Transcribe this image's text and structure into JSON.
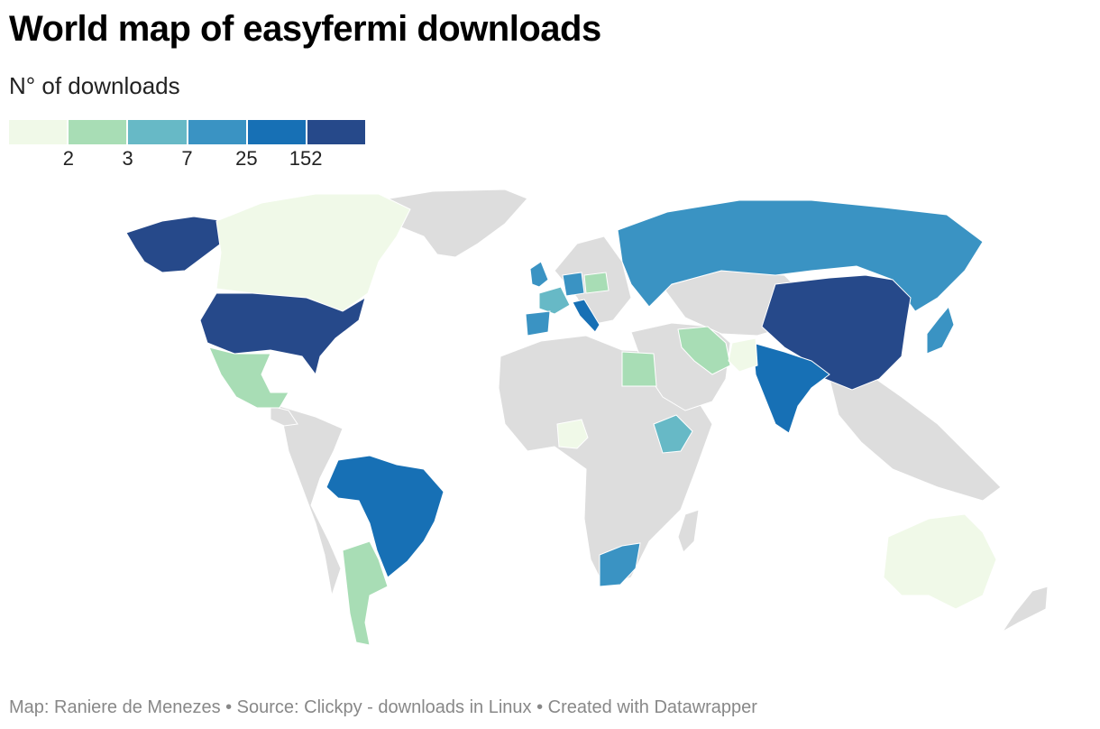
{
  "title": "World map of easyfermi downloads",
  "subtitle": "N° of downloads",
  "legend": {
    "colors": [
      "#f0f9e8",
      "#a8ddb5",
      "#67b9c6",
      "#3a93c3",
      "#1770b5",
      "#26498a"
    ],
    "labels": [
      "2",
      "3",
      "7",
      "25",
      "152"
    ]
  },
  "no_data_color": "#dddddd",
  "countries": [
    {
      "name": "United States",
      "color": "#26498a"
    },
    {
      "name": "Alaska",
      "color": "#26498a"
    },
    {
      "name": "Canada",
      "color": "#f0f9e8"
    },
    {
      "name": "Greenland",
      "color": "#dddddd"
    },
    {
      "name": "Mexico",
      "color": "#a8ddb5"
    },
    {
      "name": "Brazil",
      "color": "#1770b5"
    },
    {
      "name": "Argentina",
      "color": "#a8ddb5"
    },
    {
      "name": "Russia",
      "color": "#3a93c3"
    },
    {
      "name": "China",
      "color": "#26498a"
    },
    {
      "name": "India",
      "color": "#1770b5"
    },
    {
      "name": "Iran",
      "color": "#a8ddb5"
    },
    {
      "name": "Egypt",
      "color": "#a8ddb5"
    },
    {
      "name": "Nigeria",
      "color": "#f0f9e8"
    },
    {
      "name": "Ethiopia",
      "color": "#67b9c6"
    },
    {
      "name": "South Africa",
      "color": "#3a93c3"
    },
    {
      "name": "Australia",
      "color": "#f0f9e8"
    },
    {
      "name": "Japan",
      "color": "#3a93c3"
    },
    {
      "name": "United Kingdom",
      "color": "#3a93c3"
    },
    {
      "name": "France",
      "color": "#67b9c6"
    },
    {
      "name": "Spain",
      "color": "#3a93c3"
    },
    {
      "name": "Germany",
      "color": "#3a93c3"
    },
    {
      "name": "Italy",
      "color": "#1770b5"
    },
    {
      "name": "Poland",
      "color": "#a8ddb5"
    },
    {
      "name": "Pakistan",
      "color": "#f0f9e8"
    }
  ],
  "footer": "Map: Raniere de Menezes • Source: Clickpy - downloads in Linux • Created with Datawrapper"
}
